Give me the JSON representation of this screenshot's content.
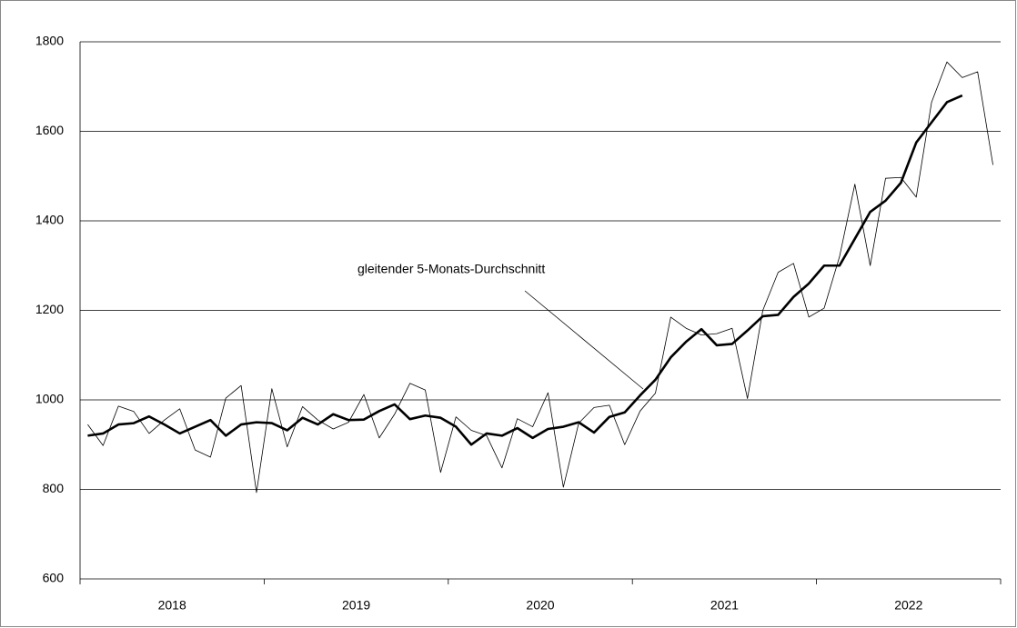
{
  "chart_data": {
    "type": "line",
    "annotation": "gleitender 5-Monats-Durchschnitt",
    "categories": [
      null,
      null,
      null,
      null,
      null,
      null,
      null,
      null,
      null,
      null,
      null,
      null,
      null,
      null,
      null,
      null,
      null,
      null,
      null,
      null,
      null,
      null,
      null,
      null,
      null,
      null,
      null,
      null,
      null,
      null,
      null,
      null,
      null,
      null,
      null,
      null,
      null,
      null,
      null,
      null,
      null,
      null,
      null,
      null,
      null,
      null,
      null,
      null,
      null,
      null,
      null,
      null,
      null,
      null,
      null,
      null,
      null,
      null,
      null,
      null
    ],
    "xtick_labels": [
      "2018",
      "2019",
      "2020",
      "2021",
      "2022"
    ],
    "ylim": [
      600,
      1800
    ],
    "yticks": [
      600,
      800,
      1000,
      1200,
      1400,
      1600,
      1800
    ],
    "grid": true,
    "series": [
      {
        "color": "#000000",
        "values": [
          945,
          898,
          986,
          974,
          925,
          955,
          980,
          888,
          872,
          1004,
          1032,
          793,
          1025,
          895,
          985,
          955,
          935,
          950,
          1012,
          915,
          968,
          1037,
          1022,
          838,
          962,
          932,
          920,
          848,
          958,
          940,
          1016,
          805,
          948,
          983,
          988,
          900,
          975,
          1015,
          1185,
          1160,
          1145,
          1148,
          1160,
          1003,
          1200,
          1285,
          1305,
          1185,
          1205,
          1320,
          1482,
          1300,
          1495,
          1497,
          1453,
          1665,
          1755,
          1720,
          1733,
          1525
        ]
      },
      {
        "color": "#000000",
        "values": [
          920,
          925,
          945,
          948,
          963,
          945,
          925,
          940,
          955,
          920,
          945,
          950,
          948,
          932,
          960,
          945,
          968,
          955,
          956,
          975,
          990,
          957,
          965,
          960,
          940,
          900,
          925,
          920,
          937,
          915,
          935,
          940,
          950,
          927,
          962,
          972,
          1010,
          1045,
          1095,
          1130,
          1158,
          1122,
          1125,
          1155,
          1187,
          1190,
          1230,
          1260,
          1300,
          1300,
          1360,
          1420,
          1445,
          1485,
          1575,
          1620,
          1665,
          1680,
          null,
          null
        ]
      }
    ]
  }
}
